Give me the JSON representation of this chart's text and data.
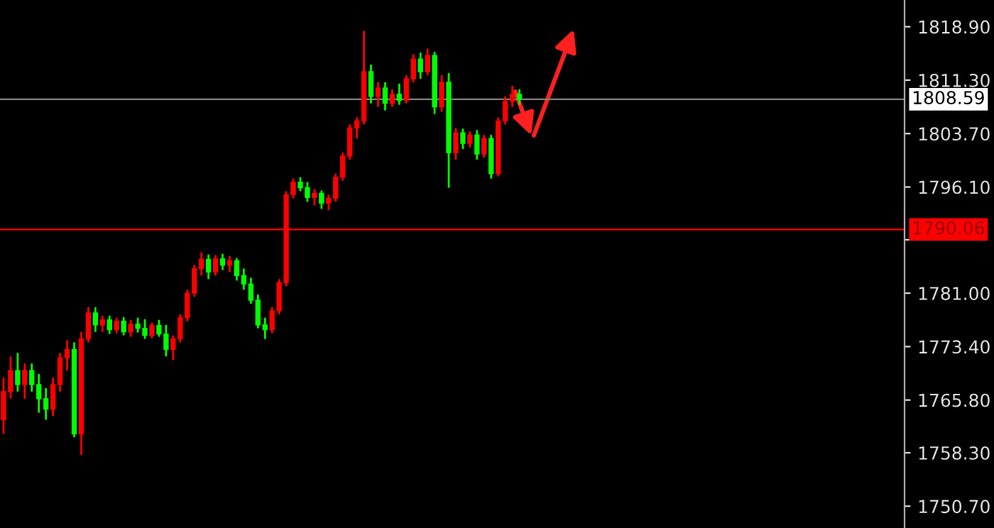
{
  "chart_data": {
    "type": "candlestick",
    "tick_labels": "y",
    "categories": [
      null,
      null,
      null,
      null,
      null,
      null,
      null,
      null,
      null,
      null,
      null,
      null,
      null,
      null,
      null,
      null,
      null,
      null,
      null,
      null,
      null,
      null,
      null,
      null,
      null,
      null,
      null,
      null,
      null,
      null,
      null,
      null,
      null,
      null,
      null,
      null,
      null,
      null,
      null,
      null,
      null,
      null,
      null,
      null,
      null,
      null,
      null,
      null,
      null,
      null,
      null,
      null,
      null,
      null,
      null,
      null,
      null,
      null,
      null,
      null,
      null,
      null,
      null,
      null,
      null,
      null,
      null,
      null,
      null,
      null,
      null,
      null,
      null,
      null,
      null,
      null,
      null,
      null,
      null,
      null,
      null,
      null,
      null,
      null,
      null,
      null,
      null,
      null,
      null,
      null,
      null,
      null,
      null,
      null,
      null,
      null,
      null,
      null,
      null,
      null,
      null,
      null,
      null,
      null,
      null,
      null,
      null,
      null,
      null,
      null,
      null,
      null,
      null,
      null,
      null,
      null,
      null,
      null,
      null,
      null,
      null,
      null,
      null,
      null,
      null,
      null,
      null,
      null
    ],
    "ohlc": [
      [
        1763,
        1769,
        1761,
        1767
      ],
      [
        1767,
        1772,
        1766,
        1770
      ],
      [
        1770,
        1772.5,
        1767,
        1768
      ],
      [
        1768,
        1771,
        1766,
        1770
      ],
      [
        1770,
        1771,
        1767,
        1768
      ],
      [
        1768,
        1769.5,
        1764,
        1766
      ],
      [
        1766,
        1767.5,
        1763,
        1764.5
      ],
      [
        1764.5,
        1769,
        1763.5,
        1768
      ],
      [
        1768,
        1772.5,
        1767,
        1771.8
      ],
      [
        1771.8,
        1774.3,
        1770,
        1773
      ],
      [
        1773,
        1774,
        1760.5,
        1761
      ],
      [
        1761,
        1775.5,
        1758,
        1774.5
      ],
      [
        1774.5,
        1779,
        1774,
        1778.2
      ],
      [
        1778.2,
        1779,
        1775.5,
        1776.5
      ],
      [
        1776.5,
        1777.8,
        1775.5,
        1777.2
      ],
      [
        1777.2,
        1777.8,
        1775.2,
        1775.8
      ],
      [
        1775.8,
        1777.5,
        1775.3,
        1777
      ],
      [
        1777,
        1777.6,
        1775,
        1775.5
      ],
      [
        1775.5,
        1777.2,
        1774.8,
        1776.6
      ],
      [
        1776.6,
        1777.5,
        1775.4,
        1776
      ],
      [
        1776,
        1777.3,
        1774.5,
        1775
      ],
      [
        1775,
        1776.8,
        1774.6,
        1776.4
      ],
      [
        1776.4,
        1777.2,
        1774.8,
        1775.2
      ],
      [
        1775.2,
        1776.5,
        1772,
        1773
      ],
      [
        1773,
        1775,
        1771.5,
        1774.5
      ],
      [
        1774.5,
        1778,
        1774,
        1777.5
      ],
      [
        1777.5,
        1781.5,
        1777,
        1781
      ],
      [
        1781,
        1785,
        1780.5,
        1784.5
      ],
      [
        1784.5,
        1786.8,
        1783.5,
        1785.8
      ],
      [
        1785.8,
        1786.5,
        1783,
        1784
      ],
      [
        1784,
        1786.4,
        1783.5,
        1785.9
      ],
      [
        1785.9,
        1786.6,
        1784.3,
        1785
      ],
      [
        1785,
        1786.3,
        1784,
        1785.6
      ],
      [
        1785.6,
        1786,
        1782.8,
        1783.5
      ],
      [
        1783.5,
        1784.5,
        1781.5,
        1782.3
      ],
      [
        1782.3,
        1783.2,
        1779.5,
        1780
      ],
      [
        1780,
        1780.8,
        1776,
        1776.5
      ],
      [
        1776.5,
        1777.5,
        1774.5,
        1775.8
      ],
      [
        1775.8,
        1779,
        1775.3,
        1778.5
      ],
      [
        1778.5,
        1783,
        1778,
        1782.5
      ],
      [
        1782.5,
        1795.5,
        1782,
        1795
      ],
      [
        1795,
        1797.3,
        1794.5,
        1796.8
      ],
      [
        1796.8,
        1797.5,
        1795.5,
        1796
      ],
      [
        1796,
        1796.8,
        1794,
        1794.6
      ],
      [
        1794.6,
        1795.8,
        1793.5,
        1795.2
      ],
      [
        1795.2,
        1795.6,
        1793,
        1793.8
      ],
      [
        1793.8,
        1795,
        1792.8,
        1794.5
      ],
      [
        1794.5,
        1798,
        1794,
        1797.5
      ],
      [
        1797.5,
        1801,
        1797,
        1800.5
      ],
      [
        1800.5,
        1805,
        1800,
        1804.5
      ],
      [
        1804.5,
        1806,
        1803,
        1805.5
      ],
      [
        1805.5,
        1818.3,
        1805,
        1812.5
      ],
      [
        1812.5,
        1813.5,
        1808,
        1809
      ],
      [
        1809,
        1811,
        1807.5,
        1810.2
      ],
      [
        1810.2,
        1811,
        1807,
        1808
      ],
      [
        1808,
        1810,
        1807.5,
        1809.3
      ],
      [
        1809.3,
        1810.8,
        1807.8,
        1808.4
      ],
      [
        1808.4,
        1812,
        1808,
        1811.5
      ],
      [
        1811.5,
        1815,
        1811,
        1814.3
      ],
      [
        1814.3,
        1815.2,
        1811.5,
        1812.5
      ],
      [
        1812.5,
        1815.8,
        1812,
        1814.8
      ],
      [
        1814.8,
        1815.3,
        1806.5,
        1807.5
      ],
      [
        1807.5,
        1812,
        1806.8,
        1811
      ],
      [
        1811,
        1812.3,
        1796,
        1801
      ],
      [
        1801,
        1804.5,
        1800,
        1803.8
      ],
      [
        1803.8,
        1804.4,
        1801.5,
        1802.3
      ],
      [
        1802.3,
        1804,
        1801.7,
        1803.5
      ],
      [
        1803.5,
        1804.2,
        1800,
        1800.8
      ],
      [
        1800.8,
        1803.5,
        1800.3,
        1803
      ],
      [
        1803,
        1803.5,
        1797.3,
        1798
      ],
      [
        1798,
        1806,
        1797.6,
        1805.5
      ],
      [
        1805.5,
        1809,
        1805,
        1808.3
      ],
      [
        1808.3,
        1810.5,
        1807.5,
        1809.3
      ],
      [
        1809.3,
        1810,
        1807.8,
        1808.59
      ],
      null,
      null,
      null,
      null,
      null,
      null,
      null,
      null,
      null,
      null,
      null,
      null,
      null,
      null,
      null,
      null,
      null,
      null,
      null,
      null,
      null,
      null,
      null,
      null,
      null,
      null,
      null,
      null,
      null,
      null,
      null,
      null,
      null,
      null,
      null,
      null,
      null,
      null,
      null,
      null,
      null,
      null,
      null,
      null,
      null,
      null,
      null,
      null,
      null,
      null,
      null,
      null,
      null,
      null
    ],
    "colors": [
      "#ff0000",
      "#ff0000",
      "#00ff00",
      "#ff0000",
      "#00ff00",
      "#00ff00",
      "#00ff00",
      "#ff0000",
      "#ff0000",
      "#ff0000",
      "#00ff00",
      "#ff0000",
      "#ff0000",
      "#00ff00",
      "#ff0000",
      "#00ff00",
      "#ff0000",
      "#00ff00",
      "#ff0000",
      "#00ff00",
      "#00ff00",
      "#ff0000",
      "#00ff00",
      "#00ff00",
      "#ff0000",
      "#ff0000",
      "#ff0000",
      "#ff0000",
      "#ff0000",
      "#00ff00",
      "#ff0000",
      "#00ff00",
      "#ff0000",
      "#00ff00",
      "#00ff00",
      "#00ff00",
      "#00ff00",
      "#00ff00",
      "#ff0000",
      "#ff0000",
      "#ff0000",
      "#ff0000",
      "#00ff00",
      "#00ff00",
      "#ff0000",
      "#00ff00",
      "#ff0000",
      "#ff0000",
      "#ff0000",
      "#ff0000",
      "#ff0000",
      "#ff0000",
      "#00ff00",
      "#ff0000",
      "#00ff00",
      "#ff0000",
      "#00ff00",
      "#ff0000",
      "#ff0000",
      "#00ff00",
      "#ff0000",
      "#00ff00",
      "#ff0000",
      "#00ff00",
      "#ff0000",
      "#00ff00",
      "#ff0000",
      "#00ff00",
      "#ff0000",
      "#00ff00",
      "#ff0000",
      "#ff0000",
      "#ff0000",
      "#00ff00",
      null,
      null,
      null,
      null,
      null,
      null,
      null,
      null,
      null,
      null,
      null,
      null,
      null,
      null,
      null,
      null,
      null,
      null,
      null,
      null,
      null,
      null,
      null,
      null,
      null,
      null,
      null,
      null,
      null,
      null,
      null,
      null,
      null,
      null,
      null,
      null,
      null,
      null,
      null,
      null,
      null,
      null,
      null,
      null,
      null,
      null,
      null,
      null,
      null,
      null,
      null,
      null,
      null,
      null
    ],
    "ylim": [
      1747.6,
      1822.7
    ],
    "yticks": [
      {
        "value": 1818.9,
        "label": "1818.90"
      },
      {
        "value": 1811.3,
        "label": "1811.30"
      },
      {
        "value": 1803.7,
        "label": "1803.70"
      },
      {
        "value": 1796.1,
        "label": "1796.10"
      },
      {
        "value": 1788.6,
        "label": null
      },
      {
        "value": 1781.0,
        "label": "1781.00"
      },
      {
        "value": 1773.4,
        "label": "1773.40"
      },
      {
        "value": 1765.8,
        "label": "1765.80"
      },
      {
        "value": 1758.3,
        "label": "1758.30"
      },
      {
        "value": 1750.7,
        "label": "1750.70"
      }
    ],
    "ref_lines": [
      {
        "axis": "y",
        "value": 1808.59,
        "label": "1808.59",
        "color": "#808080"
      },
      {
        "axis": "y",
        "value": 1790.06,
        "label": "1790.06",
        "color": "#ff0000"
      }
    ],
    "grid": false
  }
}
